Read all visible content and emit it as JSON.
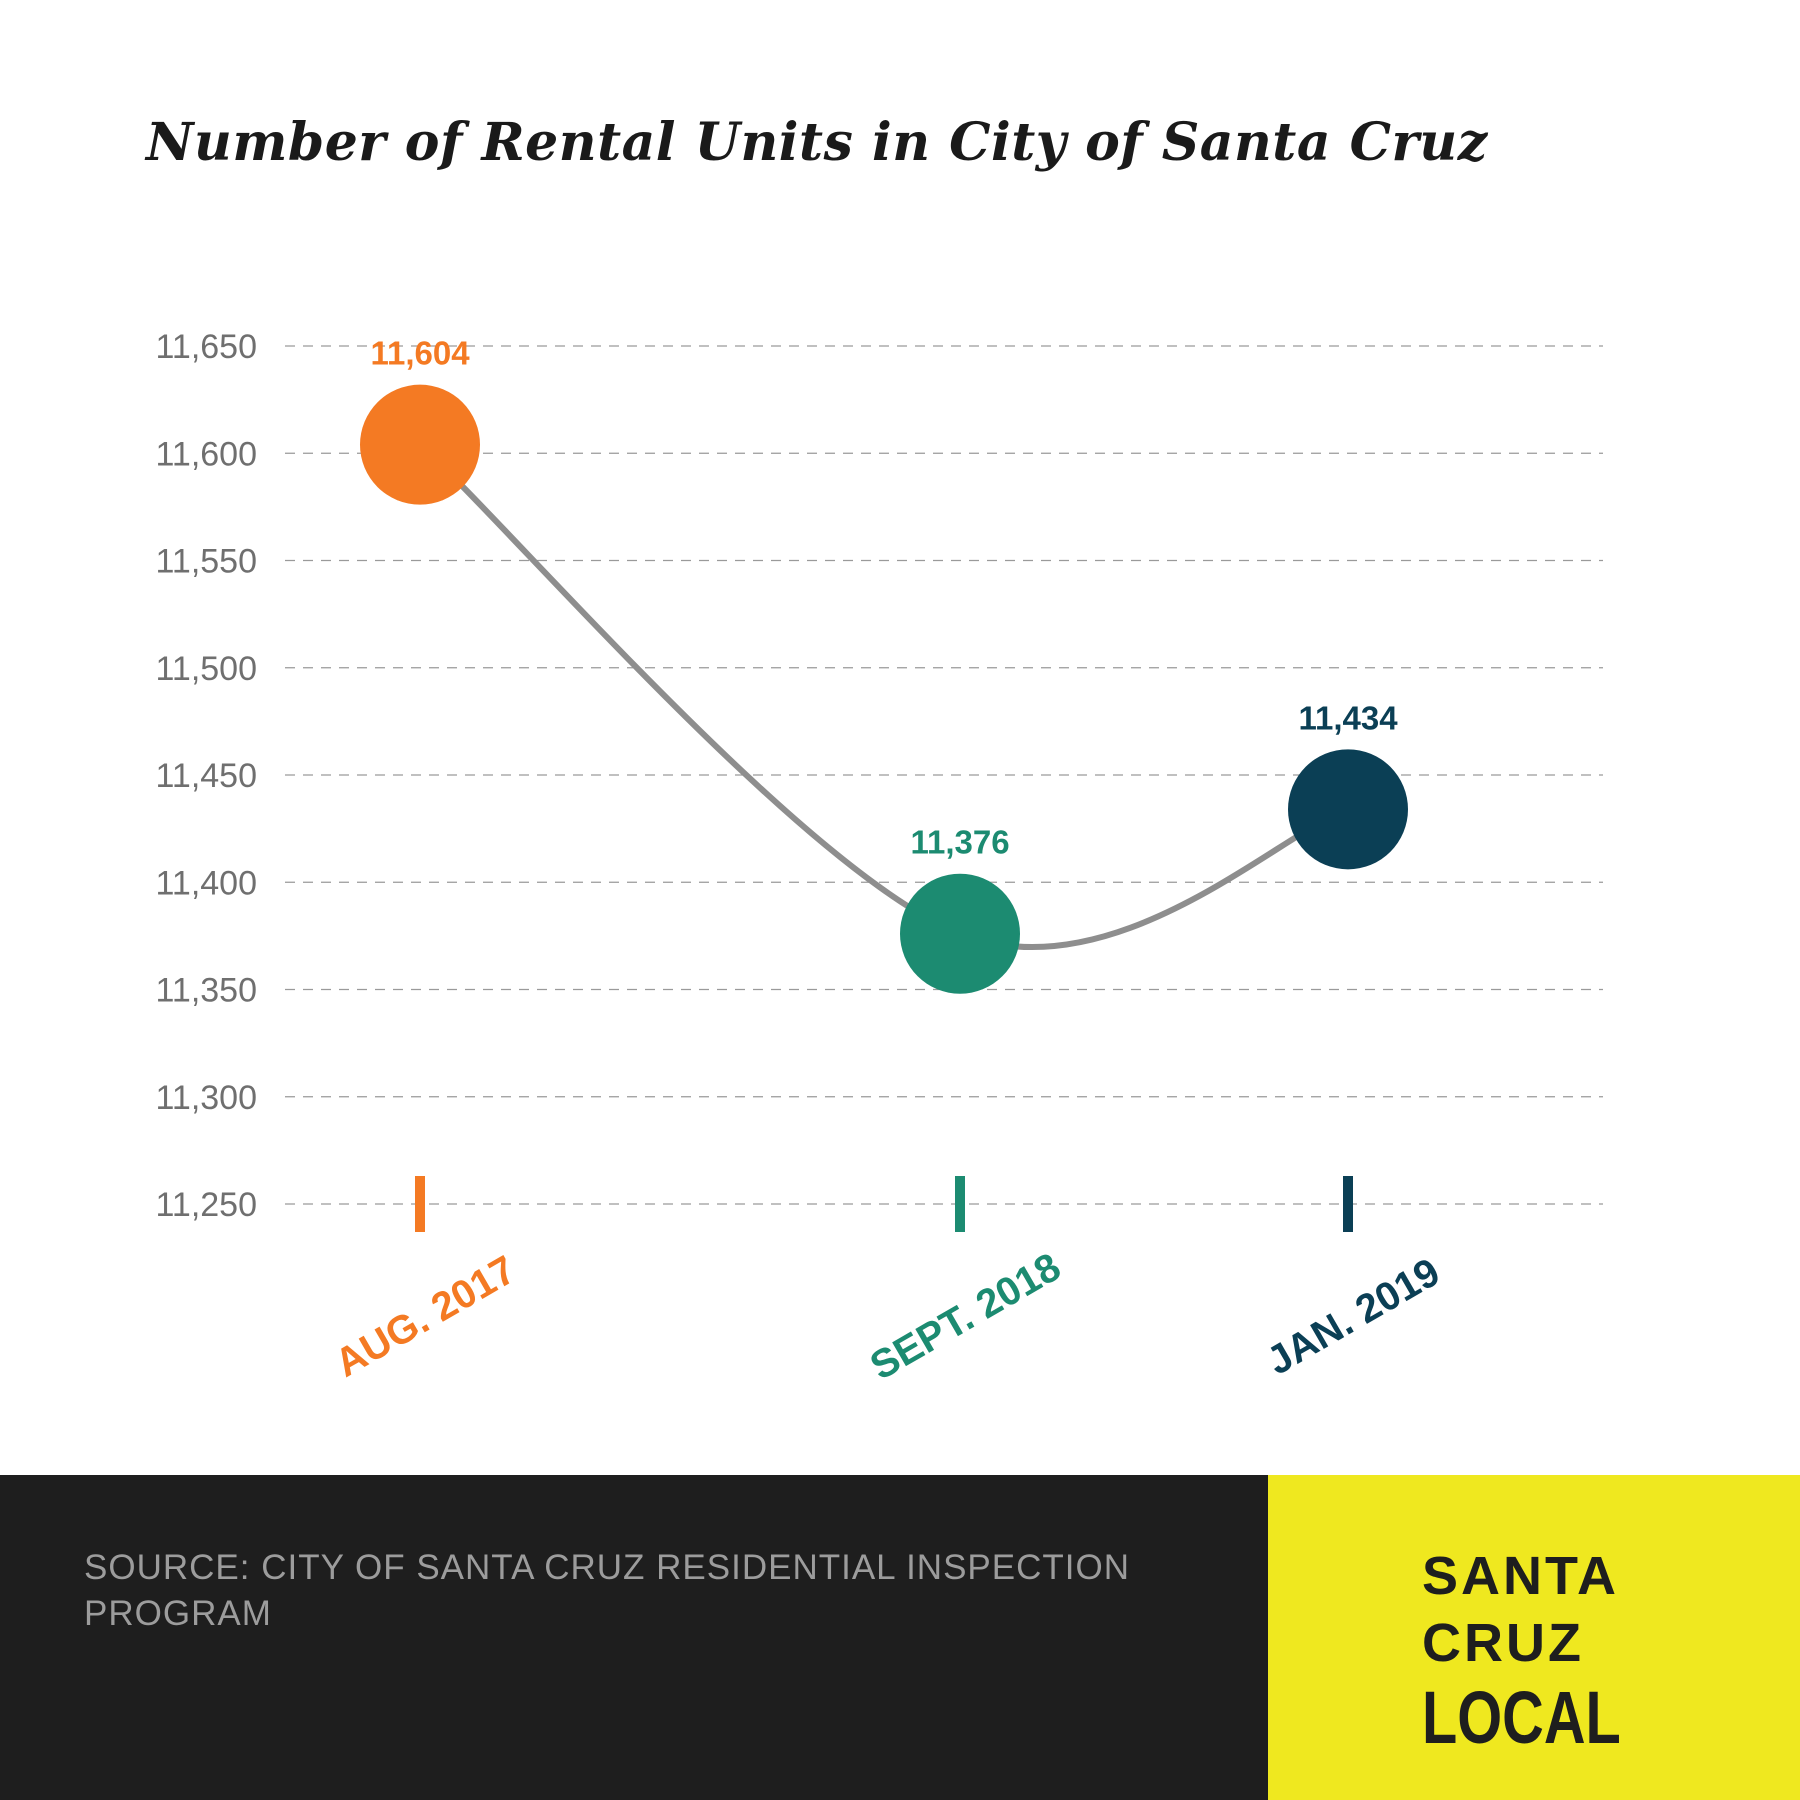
{
  "chart_data": {
    "type": "line",
    "title": "Number of Rental Units in City of Santa Cruz",
    "xlabel": "",
    "ylabel": "",
    "categories": [
      "AUG. 2017",
      "SEPT. 2018",
      "JAN. 2019"
    ],
    "values": [
      11604,
      11376,
      11434
    ],
    "value_labels": [
      "11,604",
      "11,376",
      "11,434"
    ],
    "point_colors": [
      "#f47a23",
      "#1c8b71",
      "#0b3f55"
    ],
    "line_color": "#8e8e8e",
    "ylim": [
      11250,
      11650
    ],
    "yticks": [
      11650,
      11600,
      11550,
      11500,
      11450,
      11400,
      11350,
      11300,
      11250
    ],
    "ytick_labels": [
      "11,650",
      "11,600",
      "11,550",
      "11,500",
      "11,450",
      "11,400",
      "11,350",
      "11,300",
      "11,250"
    ],
    "grid": true,
    "legend": "none"
  },
  "footer": {
    "source": "SOURCE: CITY OF SANTA CRUZ RESIDENTIAL INSPECTION PROGRAM"
  },
  "logo": {
    "line1": "SANTA",
    "line2": "CRUZ",
    "line3": "LOCAL",
    "background_color": "#efe81f",
    "text_color": "#1e1e1e"
  }
}
